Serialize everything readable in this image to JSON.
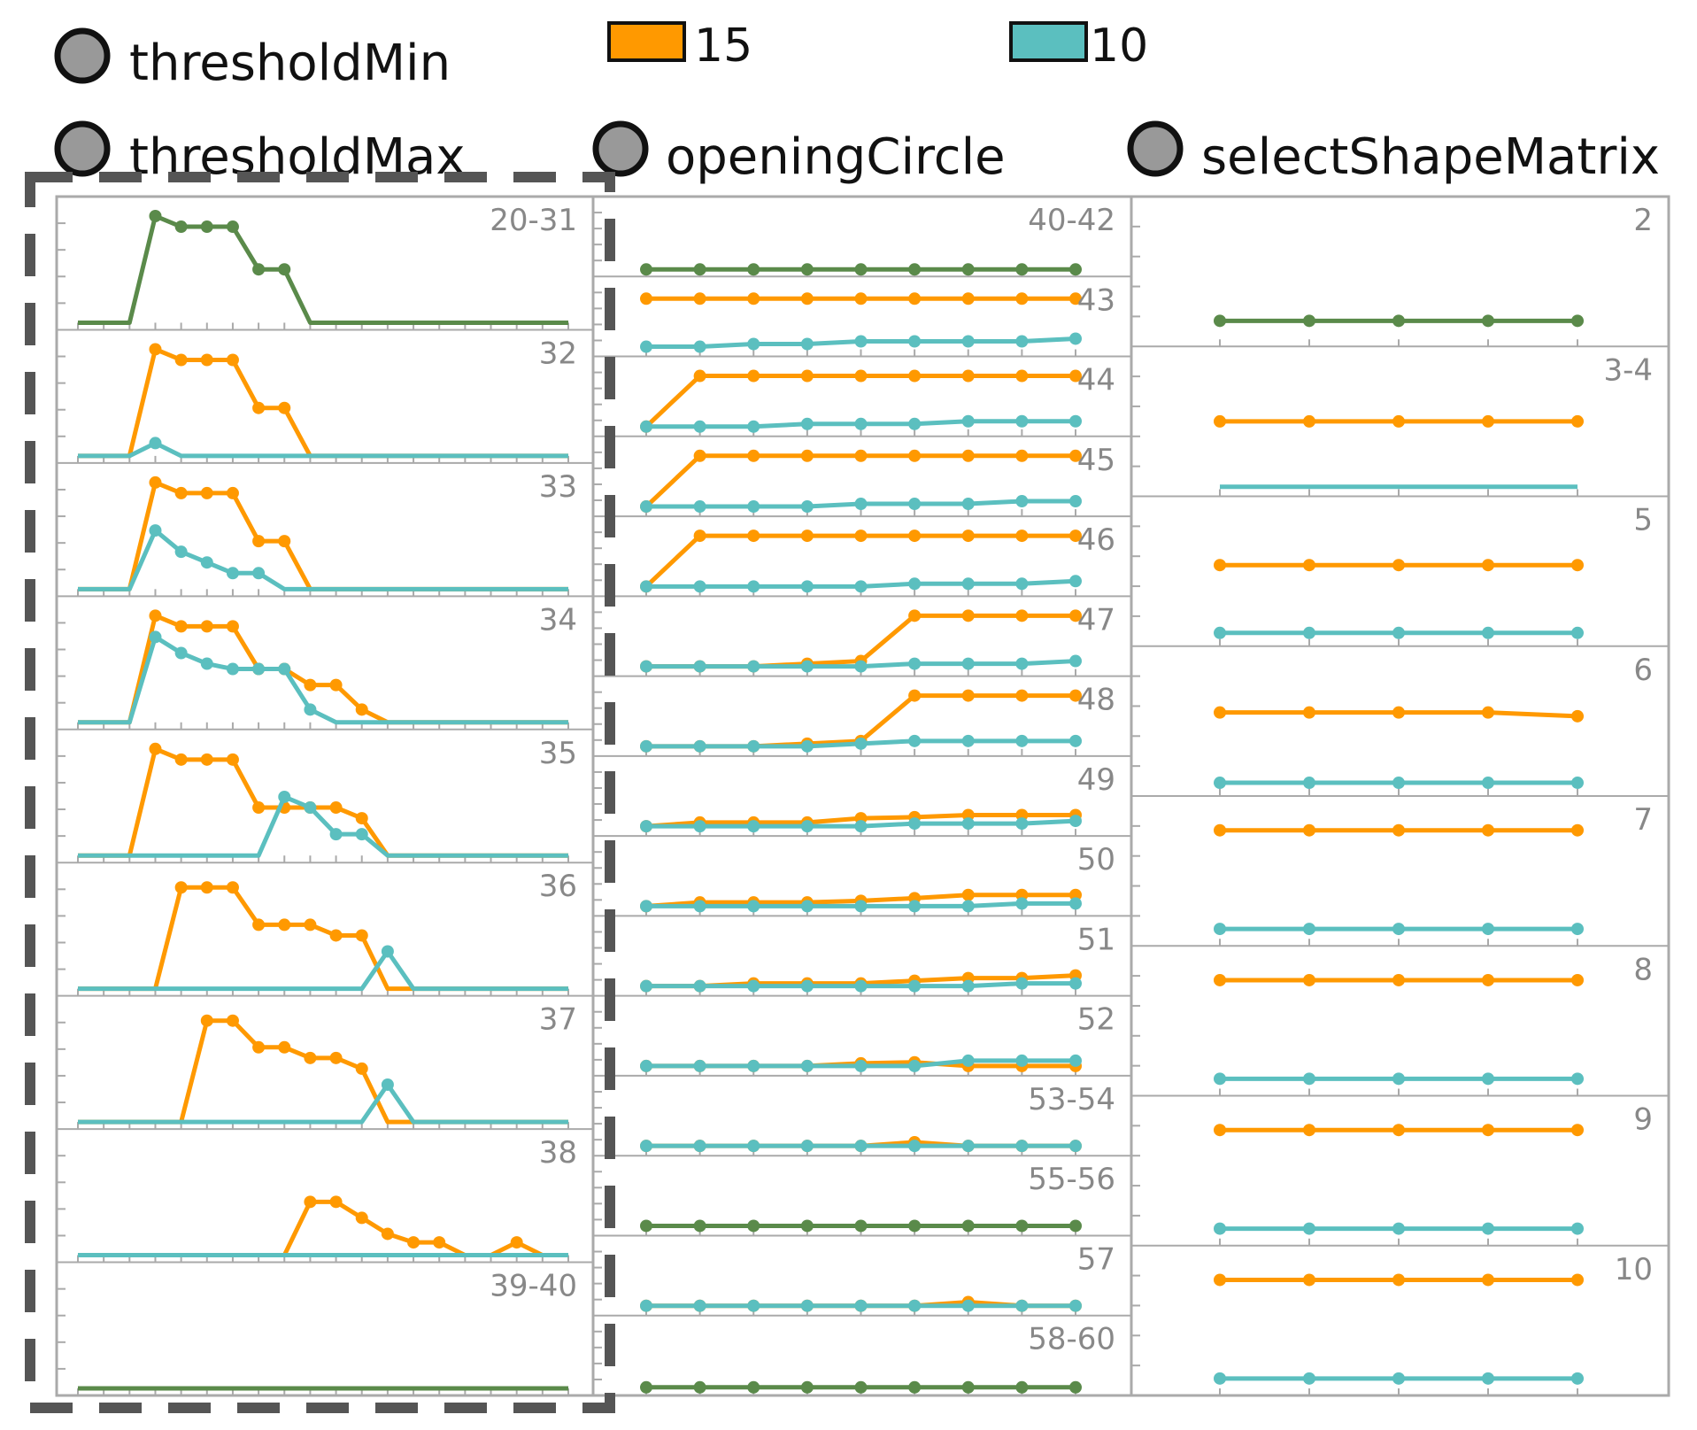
{
  "colors": {
    "orange": "#ff9900",
    "teal": "#5bbfbf",
    "overlap": "#5a8a4a",
    "frame": "#aaaaaa",
    "dashed": "#555555",
    "panel_label": "#888888"
  },
  "legend": {
    "series": [
      {
        "name": "15",
        "color": "#ff9900"
      },
      {
        "name": "10",
        "color": "#5bbfbf"
      }
    ],
    "nodes": [
      "thresholdMin",
      "thresholdMax",
      "openingCircle",
      "selectShapeMatrix"
    ]
  },
  "chart_data": [
    {
      "type": "line",
      "title": "thresholdMax",
      "panels": [
        {
          "label": "20-31",
          "orange": [
            0,
            0,
            0,
            1,
            0.9,
            0.9,
            0.9,
            0.5,
            0.5,
            0,
            0,
            0,
            0,
            0,
            0,
            0,
            0,
            0,
            0,
            0
          ],
          "teal": [
            0,
            0,
            0,
            1,
            0.9,
            0.9,
            0.9,
            0.5,
            0.5,
            0,
            0,
            0,
            0,
            0,
            0,
            0,
            0,
            0,
            0,
            0
          ],
          "shared": true
        },
        {
          "label": "32",
          "orange": [
            0,
            0,
            0,
            1,
            0.9,
            0.9,
            0.9,
            0.45,
            0.45,
            0,
            0,
            0,
            0,
            0,
            0,
            0,
            0,
            0,
            0,
            0
          ],
          "teal": [
            0,
            0,
            0,
            0.12,
            0,
            0,
            0,
            0,
            0,
            0,
            0,
            0,
            0,
            0,
            0,
            0,
            0,
            0,
            0,
            0
          ]
        },
        {
          "label": "33",
          "orange": [
            0,
            0,
            0,
            1,
            0.9,
            0.9,
            0.9,
            0.45,
            0.45,
            0,
            0,
            0,
            0,
            0,
            0,
            0,
            0,
            0,
            0,
            0
          ],
          "teal": [
            0,
            0,
            0,
            0.55,
            0.35,
            0.25,
            0.15,
            0.15,
            0,
            0,
            0,
            0,
            0,
            0,
            0,
            0,
            0,
            0,
            0,
            0
          ]
        },
        {
          "label": "34",
          "orange": [
            0,
            0,
            0,
            1,
            0.9,
            0.9,
            0.9,
            0.5,
            0.5,
            0.35,
            0.35,
            0.12,
            0,
            0,
            0,
            0,
            0,
            0,
            0,
            0
          ],
          "teal": [
            0,
            0,
            0,
            0.8,
            0.65,
            0.55,
            0.5,
            0.5,
            0.5,
            0.12,
            0,
            0,
            0,
            0,
            0,
            0,
            0,
            0,
            0,
            0
          ]
        },
        {
          "label": "35",
          "orange": [
            0,
            0,
            0,
            1,
            0.9,
            0.9,
            0.9,
            0.45,
            0.45,
            0.45,
            0.45,
            0.35,
            0,
            0,
            0,
            0,
            0,
            0,
            0,
            0
          ],
          "teal": [
            0,
            0,
            0,
            0,
            0,
            0,
            0,
            0,
            0.55,
            0.45,
            0.2,
            0.2,
            0,
            0,
            0,
            0,
            0,
            0,
            0,
            0
          ]
        },
        {
          "label": "36",
          "orange": [
            0,
            0,
            0,
            0,
            0.95,
            0.95,
            0.95,
            0.6,
            0.6,
            0.6,
            0.5,
            0.5,
            0,
            0,
            0,
            0,
            0,
            0,
            0,
            0
          ],
          "teal": [
            0,
            0,
            0,
            0,
            0,
            0,
            0,
            0,
            0,
            0,
            0,
            0,
            0.35,
            0,
            0,
            0,
            0,
            0,
            0,
            0
          ]
        },
        {
          "label": "37",
          "orange": [
            0,
            0,
            0,
            0,
            0,
            0.95,
            0.95,
            0.7,
            0.7,
            0.6,
            0.6,
            0.5,
            0,
            0,
            0,
            0,
            0,
            0,
            0,
            0
          ],
          "teal": [
            0,
            0,
            0,
            0,
            0,
            0,
            0,
            0,
            0,
            0,
            0,
            0,
            0.35,
            0,
            0,
            0,
            0,
            0,
            0,
            0
          ]
        },
        {
          "label": "38",
          "orange": [
            0,
            0,
            0,
            0,
            0,
            0,
            0,
            0,
            0,
            0.5,
            0.5,
            0.35,
            0.2,
            0.12,
            0.12,
            0,
            0,
            0.12,
            0,
            0
          ],
          "teal": [
            0,
            0,
            0,
            0,
            0,
            0,
            0,
            0,
            0,
            0,
            0,
            0,
            0,
            0,
            0,
            0,
            0,
            0,
            0,
            0
          ]
        },
        {
          "label": "39-40",
          "orange": [
            0,
            0,
            0,
            0,
            0,
            0,
            0,
            0,
            0,
            0,
            0,
            0,
            0,
            0,
            0,
            0,
            0,
            0,
            0,
            0
          ],
          "teal": [
            0,
            0,
            0,
            0,
            0,
            0,
            0,
            0,
            0,
            0,
            0,
            0,
            0,
            0,
            0,
            0,
            0,
            0,
            0,
            0
          ],
          "shared": true
        }
      ]
    },
    {
      "type": "line",
      "title": "openingCircle",
      "panels": [
        {
          "label": "40-42",
          "orange": [
            0,
            0,
            0,
            0,
            0,
            0,
            0,
            0,
            0
          ],
          "teal": [
            0,
            0,
            0,
            0,
            0,
            0,
            0,
            0,
            0
          ],
          "shared": true
        },
        {
          "label": "43",
          "orange": [
            0.95,
            0.95,
            0.95,
            0.95,
            0.95,
            0.95,
            0.95,
            0.95,
            0.95
          ],
          "teal": [
            0.05,
            0.05,
            0.1,
            0.1,
            0.15,
            0.15,
            0.15,
            0.15,
            0.2
          ]
        },
        {
          "label": "44",
          "orange": [
            0.05,
            1,
            1,
            1,
            1,
            1,
            1,
            1,
            1
          ],
          "teal": [
            0.05,
            0.05,
            0.05,
            0.1,
            0.1,
            0.1,
            0.15,
            0.15,
            0.15
          ]
        },
        {
          "label": "45",
          "orange": [
            0.05,
            1,
            1,
            1,
            1,
            1,
            1,
            1,
            1
          ],
          "teal": [
            0.05,
            0.05,
            0.05,
            0.05,
            0.1,
            0.1,
            0.1,
            0.15,
            0.15
          ]
        },
        {
          "label": "46",
          "orange": [
            0.05,
            1,
            1,
            1,
            1,
            1,
            1,
            1,
            1
          ],
          "teal": [
            0.05,
            0.05,
            0.05,
            0.05,
            0.05,
            0.1,
            0.1,
            0.1,
            0.15
          ]
        },
        {
          "label": "47",
          "orange": [
            0.05,
            0.05,
            0.05,
            0.1,
            0.15,
            1,
            1,
            1,
            1
          ],
          "teal": [
            0.05,
            0.05,
            0.05,
            0.05,
            0.05,
            0.1,
            0.1,
            0.1,
            0.15
          ]
        },
        {
          "label": "48",
          "orange": [
            0.05,
            0.05,
            0.05,
            0.1,
            0.15,
            1,
            1,
            1,
            1
          ],
          "teal": [
            0.05,
            0.05,
            0.05,
            0.05,
            0.1,
            0.15,
            0.15,
            0.15,
            0.15
          ]
        },
        {
          "label": "49",
          "orange": [
            0.05,
            0.12,
            0.12,
            0.12,
            0.2,
            0.22,
            0.26,
            0.26,
            0.26
          ],
          "teal": [
            0.05,
            0.05,
            0.05,
            0.05,
            0.05,
            0.1,
            0.1,
            0.1,
            0.15
          ]
        },
        {
          "label": "50",
          "orange": [
            0.05,
            0.12,
            0.12,
            0.12,
            0.15,
            0.2,
            0.26,
            0.26,
            0.26
          ],
          "teal": [
            0.05,
            0.05,
            0.05,
            0.05,
            0.05,
            0.05,
            0.05,
            0.1,
            0.1
          ]
        },
        {
          "label": "51",
          "orange": [
            0.05,
            0.05,
            0.1,
            0.1,
            0.1,
            0.15,
            0.2,
            0.2,
            0.25
          ],
          "teal": [
            0.05,
            0.05,
            0.05,
            0.05,
            0.05,
            0.05,
            0.05,
            0.1,
            0.1
          ]
        },
        {
          "label": "52",
          "orange": [
            0.05,
            0.05,
            0.05,
            0.05,
            0.1,
            0.12,
            0.05,
            0.05,
            0.05
          ],
          "teal": [
            0.05,
            0.05,
            0.05,
            0.05,
            0.05,
            0.05,
            0.15,
            0.15,
            0.15
          ]
        },
        {
          "label": "53-54",
          "orange": [
            0.05,
            0.05,
            0.05,
            0.05,
            0.05,
            0.12,
            0.05,
            0.05,
            0.05
          ],
          "teal": [
            0.05,
            0.05,
            0.05,
            0.05,
            0.05,
            0.05,
            0.05,
            0.05,
            0.05
          ]
        },
        {
          "label": "55-56",
          "orange": [
            0.05,
            0.05,
            0.05,
            0.05,
            0.05,
            0.05,
            0.05,
            0.05,
            0.05
          ],
          "teal": [
            0.05,
            0.05,
            0.05,
            0.05,
            0.05,
            0.05,
            0.05,
            0.05,
            0.05
          ],
          "shared": true
        },
        {
          "label": "57",
          "orange": [
            0.05,
            0.05,
            0.05,
            0.05,
            0.05,
            0.05,
            0.12,
            0.05,
            0.05
          ],
          "teal": [
            0.05,
            0.05,
            0.05,
            0.05,
            0.05,
            0.05,
            0.05,
            0.05,
            0.05
          ]
        },
        {
          "label": "58-60",
          "orange": [
            0.02,
            0.02,
            0.02,
            0.02,
            0.02,
            0.02,
            0.02,
            0.02,
            0.02
          ],
          "teal": [
            0.02,
            0.02,
            0.02,
            0.02,
            0.02,
            0.02,
            0.02,
            0.02,
            0.02
          ],
          "shared": true
        }
      ]
    },
    {
      "type": "line",
      "title": "selectShapeMatrix",
      "panels": [
        {
          "label": "2",
          "orange": [
            0.15,
            0.15,
            0.15,
            0.15,
            0.15
          ],
          "teal": [
            0.15,
            0.15,
            0.15,
            0.15,
            0.15
          ],
          "shared": true
        },
        {
          "label": "3-4",
          "orange": [
            0.55,
            0.55,
            0.55,
            0.55,
            0.55
          ],
          "teal": [
            0.02,
            0.02,
            0.02,
            0.02,
            0.02
          ],
          "teal_markers": false
        },
        {
          "label": "5",
          "orange": [
            0.6,
            0.6,
            0.6,
            0.6,
            0.6
          ],
          "teal": [
            0.05,
            0.05,
            0.05,
            0.05,
            0.05
          ]
        },
        {
          "label": "6",
          "orange": [
            0.62,
            0.62,
            0.62,
            0.62,
            0.59
          ],
          "teal": [
            0.05,
            0.05,
            0.05,
            0.05,
            0.05
          ]
        },
        {
          "label": "7",
          "orange": [
            0.88,
            0.88,
            0.88,
            0.88,
            0.88
          ],
          "teal": [
            0.08,
            0.08,
            0.08,
            0.08,
            0.08
          ]
        },
        {
          "label": "8",
          "orange": [
            0.88,
            0.88,
            0.88,
            0.88,
            0.88
          ],
          "teal": [
            0.08,
            0.08,
            0.08,
            0.08,
            0.08
          ]
        },
        {
          "label": "9",
          "orange": [
            0.88,
            0.88,
            0.88,
            0.88,
            0.88
          ],
          "teal": [
            0.08,
            0.08,
            0.08,
            0.08,
            0.08
          ]
        },
        {
          "label": "10",
          "orange": [
            0.88,
            0.88,
            0.88,
            0.88,
            0.88
          ],
          "teal": [
            0.08,
            0.08,
            0.08,
            0.08,
            0.08
          ]
        }
      ]
    }
  ]
}
